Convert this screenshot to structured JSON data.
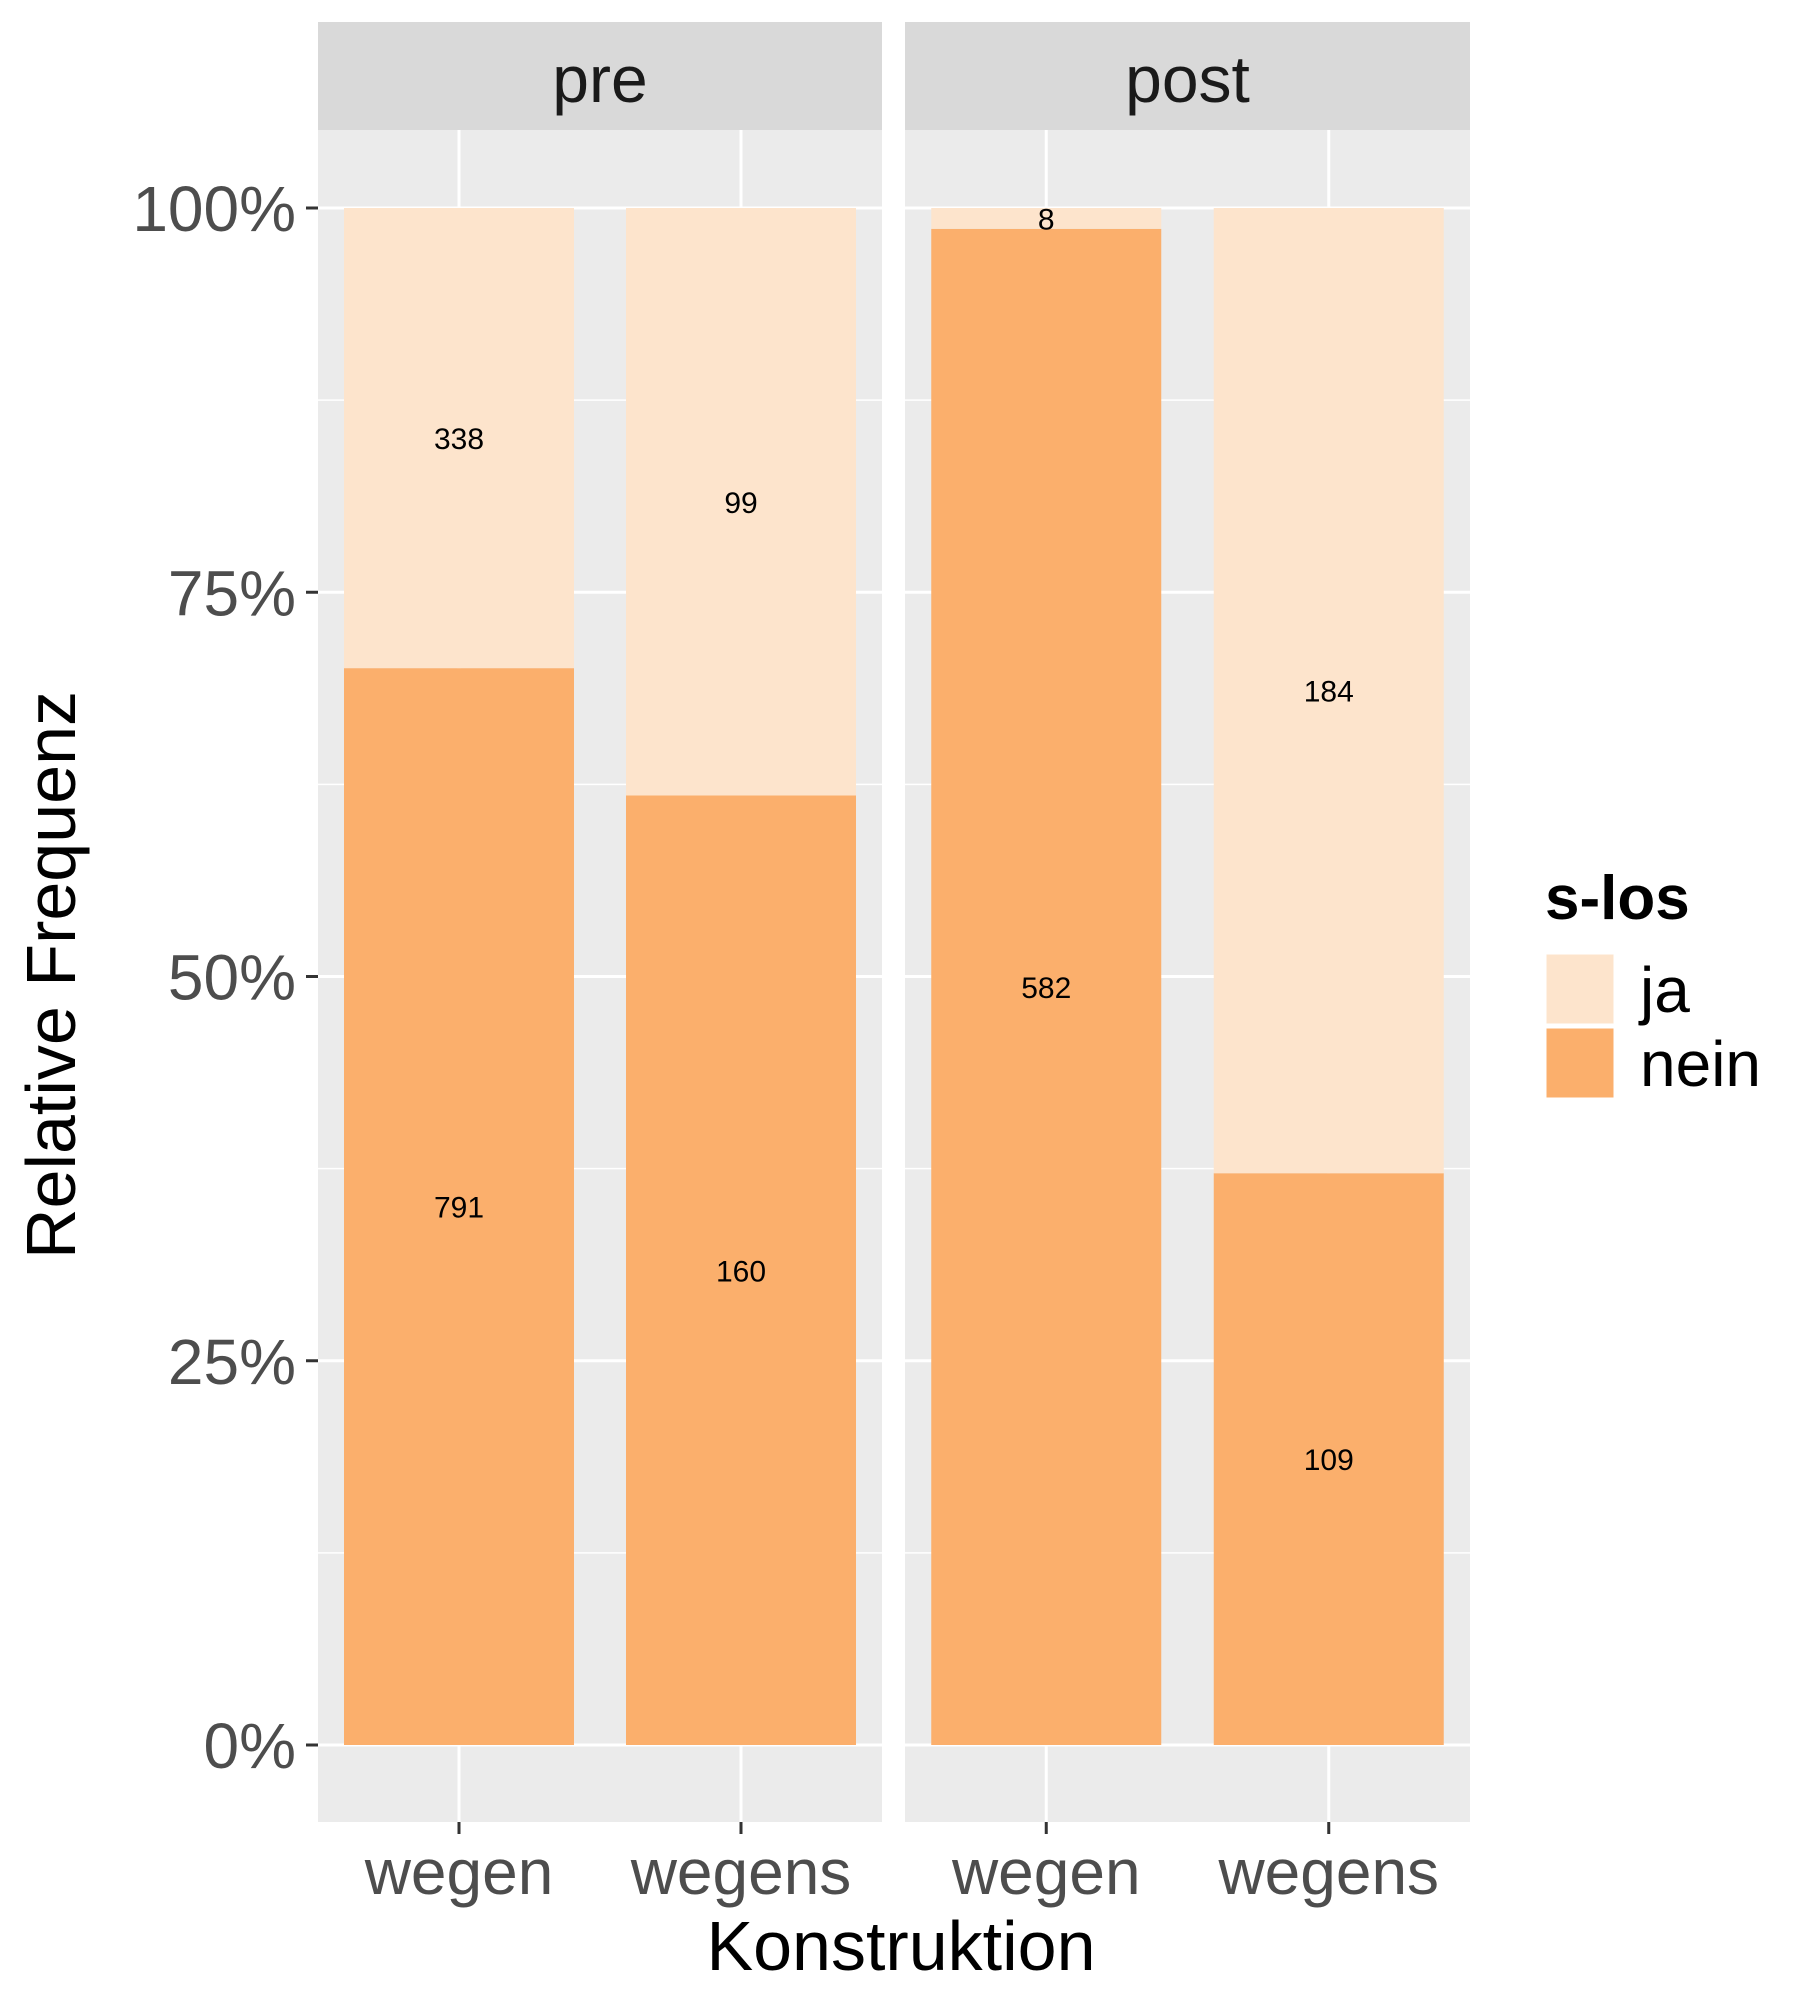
{
  "chart_data": {
    "type": "bar",
    "stacked": "percent",
    "xlabel": "Konstruktion",
    "ylabel": "Relative Frequenz",
    "y_ticks": [
      "0%",
      "25%",
      "50%",
      "75%",
      "100%"
    ],
    "ylim": [
      0,
      1
    ],
    "legend": {
      "title": "s-los",
      "position": "right",
      "items": [
        {
          "label": "ja",
          "color": "#FDE4CC"
        },
        {
          "label": "nein",
          "color": "#FBAF6C"
        }
      ]
    },
    "panels": [
      {
        "label": "pre",
        "categories": [
          "wegen",
          "wegens"
        ],
        "series": [
          {
            "name": "ja",
            "values": [
              338,
              99
            ]
          },
          {
            "name": "nein",
            "values": [
              791,
              160
            ]
          }
        ]
      },
      {
        "label": "post",
        "categories": [
          "wegen",
          "wegens"
        ],
        "series": [
          {
            "name": "ja",
            "values": [
              8,
              184
            ]
          },
          {
            "name": "nein",
            "values": [
              582,
              109
            ]
          }
        ]
      }
    ],
    "grid": true
  }
}
